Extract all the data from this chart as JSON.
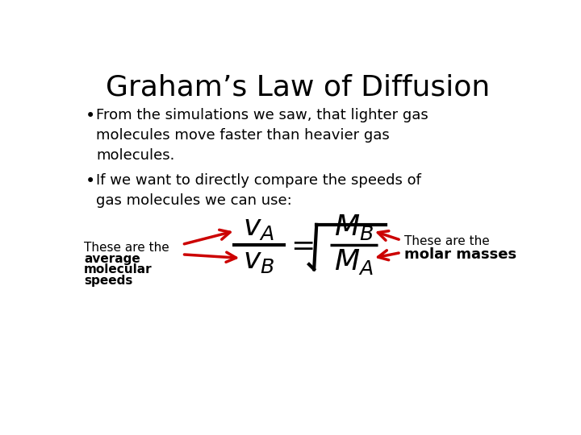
{
  "title": "Graham’s Law of Diffusion",
  "title_fontsize": 26,
  "bullet1": "From the simulations we saw, that lighter gas\nmolecules move faster than heavier gas\nmolecules.",
  "bullet2": "If we want to directly compare the speeds of\ngas molecules we can use:",
  "label_left_line1": "These are the",
  "label_left_line2": "average",
  "label_left_line3": "molecular",
  "label_left_line4": "speeds",
  "label_right_line1": "These are the",
  "label_right_line2": "molar masses",
  "background_color": "#ffffff",
  "text_color": "#000000",
  "arrow_color": "#cc0000",
  "font_size_body": 13,
  "font_size_label": 11,
  "font_size_formula": 26
}
